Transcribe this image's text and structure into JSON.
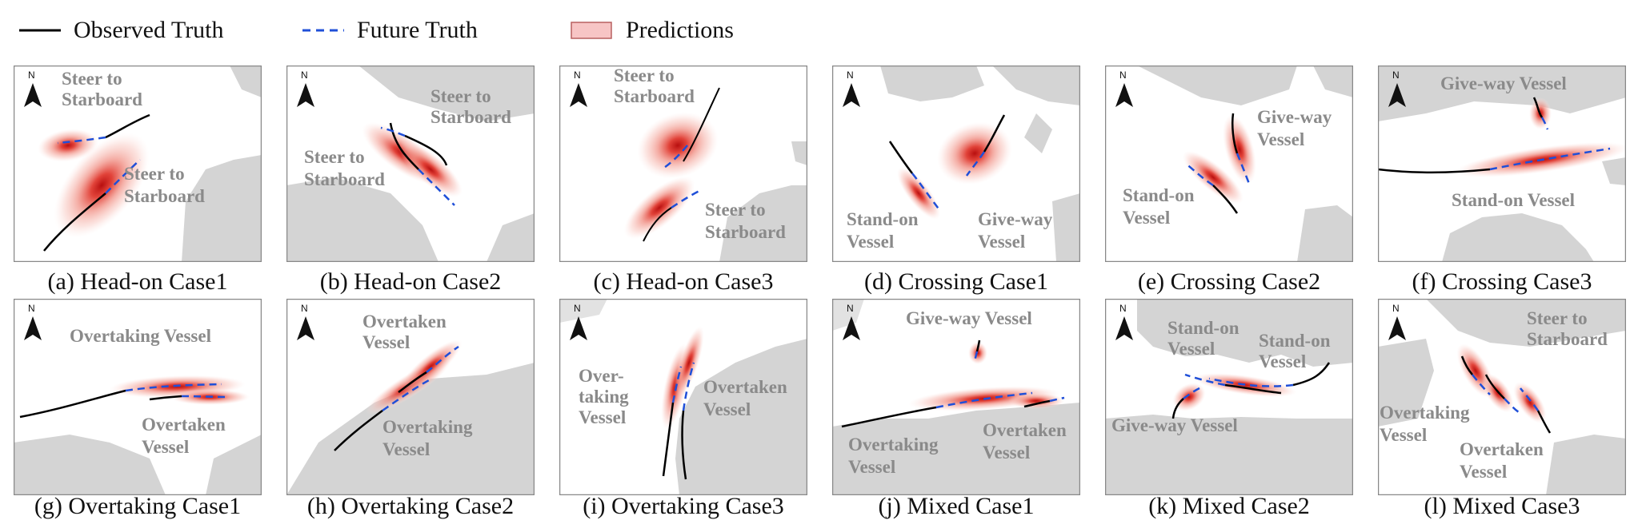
{
  "legend": {
    "observed": "Observed Truth",
    "future": "Future Truth",
    "predictions": "Predictions"
  },
  "colors": {
    "observed": "#000000",
    "future": "#1f4fd8",
    "prediction_fill": "#f7c5c5",
    "prediction_core": "#c81e1e",
    "land": "#d4d4d4",
    "frame": "#888888",
    "label": "#8a8a8a"
  },
  "north_label": "N",
  "panels": [
    {
      "caption": "(a) Head-on Case1",
      "labels": [
        {
          "lines": [
            "Steer to",
            "Starboard"
          ]
        },
        {
          "lines": [
            "Steer to",
            "Starboard"
          ]
        }
      ]
    },
    {
      "caption": "(b) Head-on Case2",
      "labels": [
        {
          "lines": [
            "Steer to",
            "Starboard"
          ]
        },
        {
          "lines": [
            "Steer to",
            "Starboard"
          ]
        }
      ]
    },
    {
      "caption": "(c) Head-on Case3",
      "labels": [
        {
          "lines": [
            "Steer to",
            "Starboard"
          ]
        },
        {
          "lines": [
            "Steer to",
            "Starboard"
          ]
        }
      ]
    },
    {
      "caption": "(d) Crossing Case1",
      "labels": [
        {
          "lines": [
            "Stand-on",
            "Vessel"
          ]
        },
        {
          "lines": [
            "Give-way",
            "Vessel"
          ]
        }
      ]
    },
    {
      "caption": "(e) Crossing Case2",
      "labels": [
        {
          "lines": [
            "Give-way",
            "Vessel"
          ]
        },
        {
          "lines": [
            "Stand-on",
            "Vessel"
          ]
        }
      ]
    },
    {
      "caption": "(f) Crossing Case3",
      "labels": [
        {
          "lines": [
            "Give-way Vessel"
          ]
        },
        {
          "lines": [
            "Stand-on Vessel"
          ]
        }
      ]
    },
    {
      "caption": "(g) Overtaking Case1",
      "labels": [
        {
          "lines": [
            "Overtaking Vessel"
          ]
        },
        {
          "lines": [
            "Overtaken",
            "Vessel"
          ]
        }
      ]
    },
    {
      "caption": "(h) Overtaking Case2",
      "labels": [
        {
          "lines": [
            "Overtaken",
            "Vessel"
          ]
        },
        {
          "lines": [
            "Overtaking",
            "Vessel"
          ]
        }
      ]
    },
    {
      "caption": "(i) Overtaking Case3",
      "labels": [
        {
          "lines": [
            "Over-",
            "taking",
            "Vessel"
          ]
        },
        {
          "lines": [
            "Overtaken",
            "Vessel"
          ]
        }
      ]
    },
    {
      "caption": "(j) Mixed  Case1",
      "labels": [
        {
          "lines": [
            "Give-way Vessel"
          ]
        },
        {
          "lines": [
            "Overtaking",
            "Vessel"
          ]
        },
        {
          "lines": [
            "Overtaken",
            "Vessel"
          ]
        }
      ]
    },
    {
      "caption": "(k) Mixed Case2",
      "labels": [
        {
          "lines": [
            "Stand-on",
            "Vessel"
          ]
        },
        {
          "lines": [
            "Stand-on",
            "Vessel"
          ]
        },
        {
          "lines": [
            "Give-way Vessel"
          ]
        }
      ]
    },
    {
      "caption": "(l) Mixed Case3",
      "labels": [
        {
          "lines": [
            "Steer to",
            "Starboard"
          ]
        },
        {
          "lines": [
            "Overtaking",
            "Vessel"
          ]
        },
        {
          "lines": [
            "Overtaken",
            "Vessel"
          ]
        }
      ]
    }
  ]
}
